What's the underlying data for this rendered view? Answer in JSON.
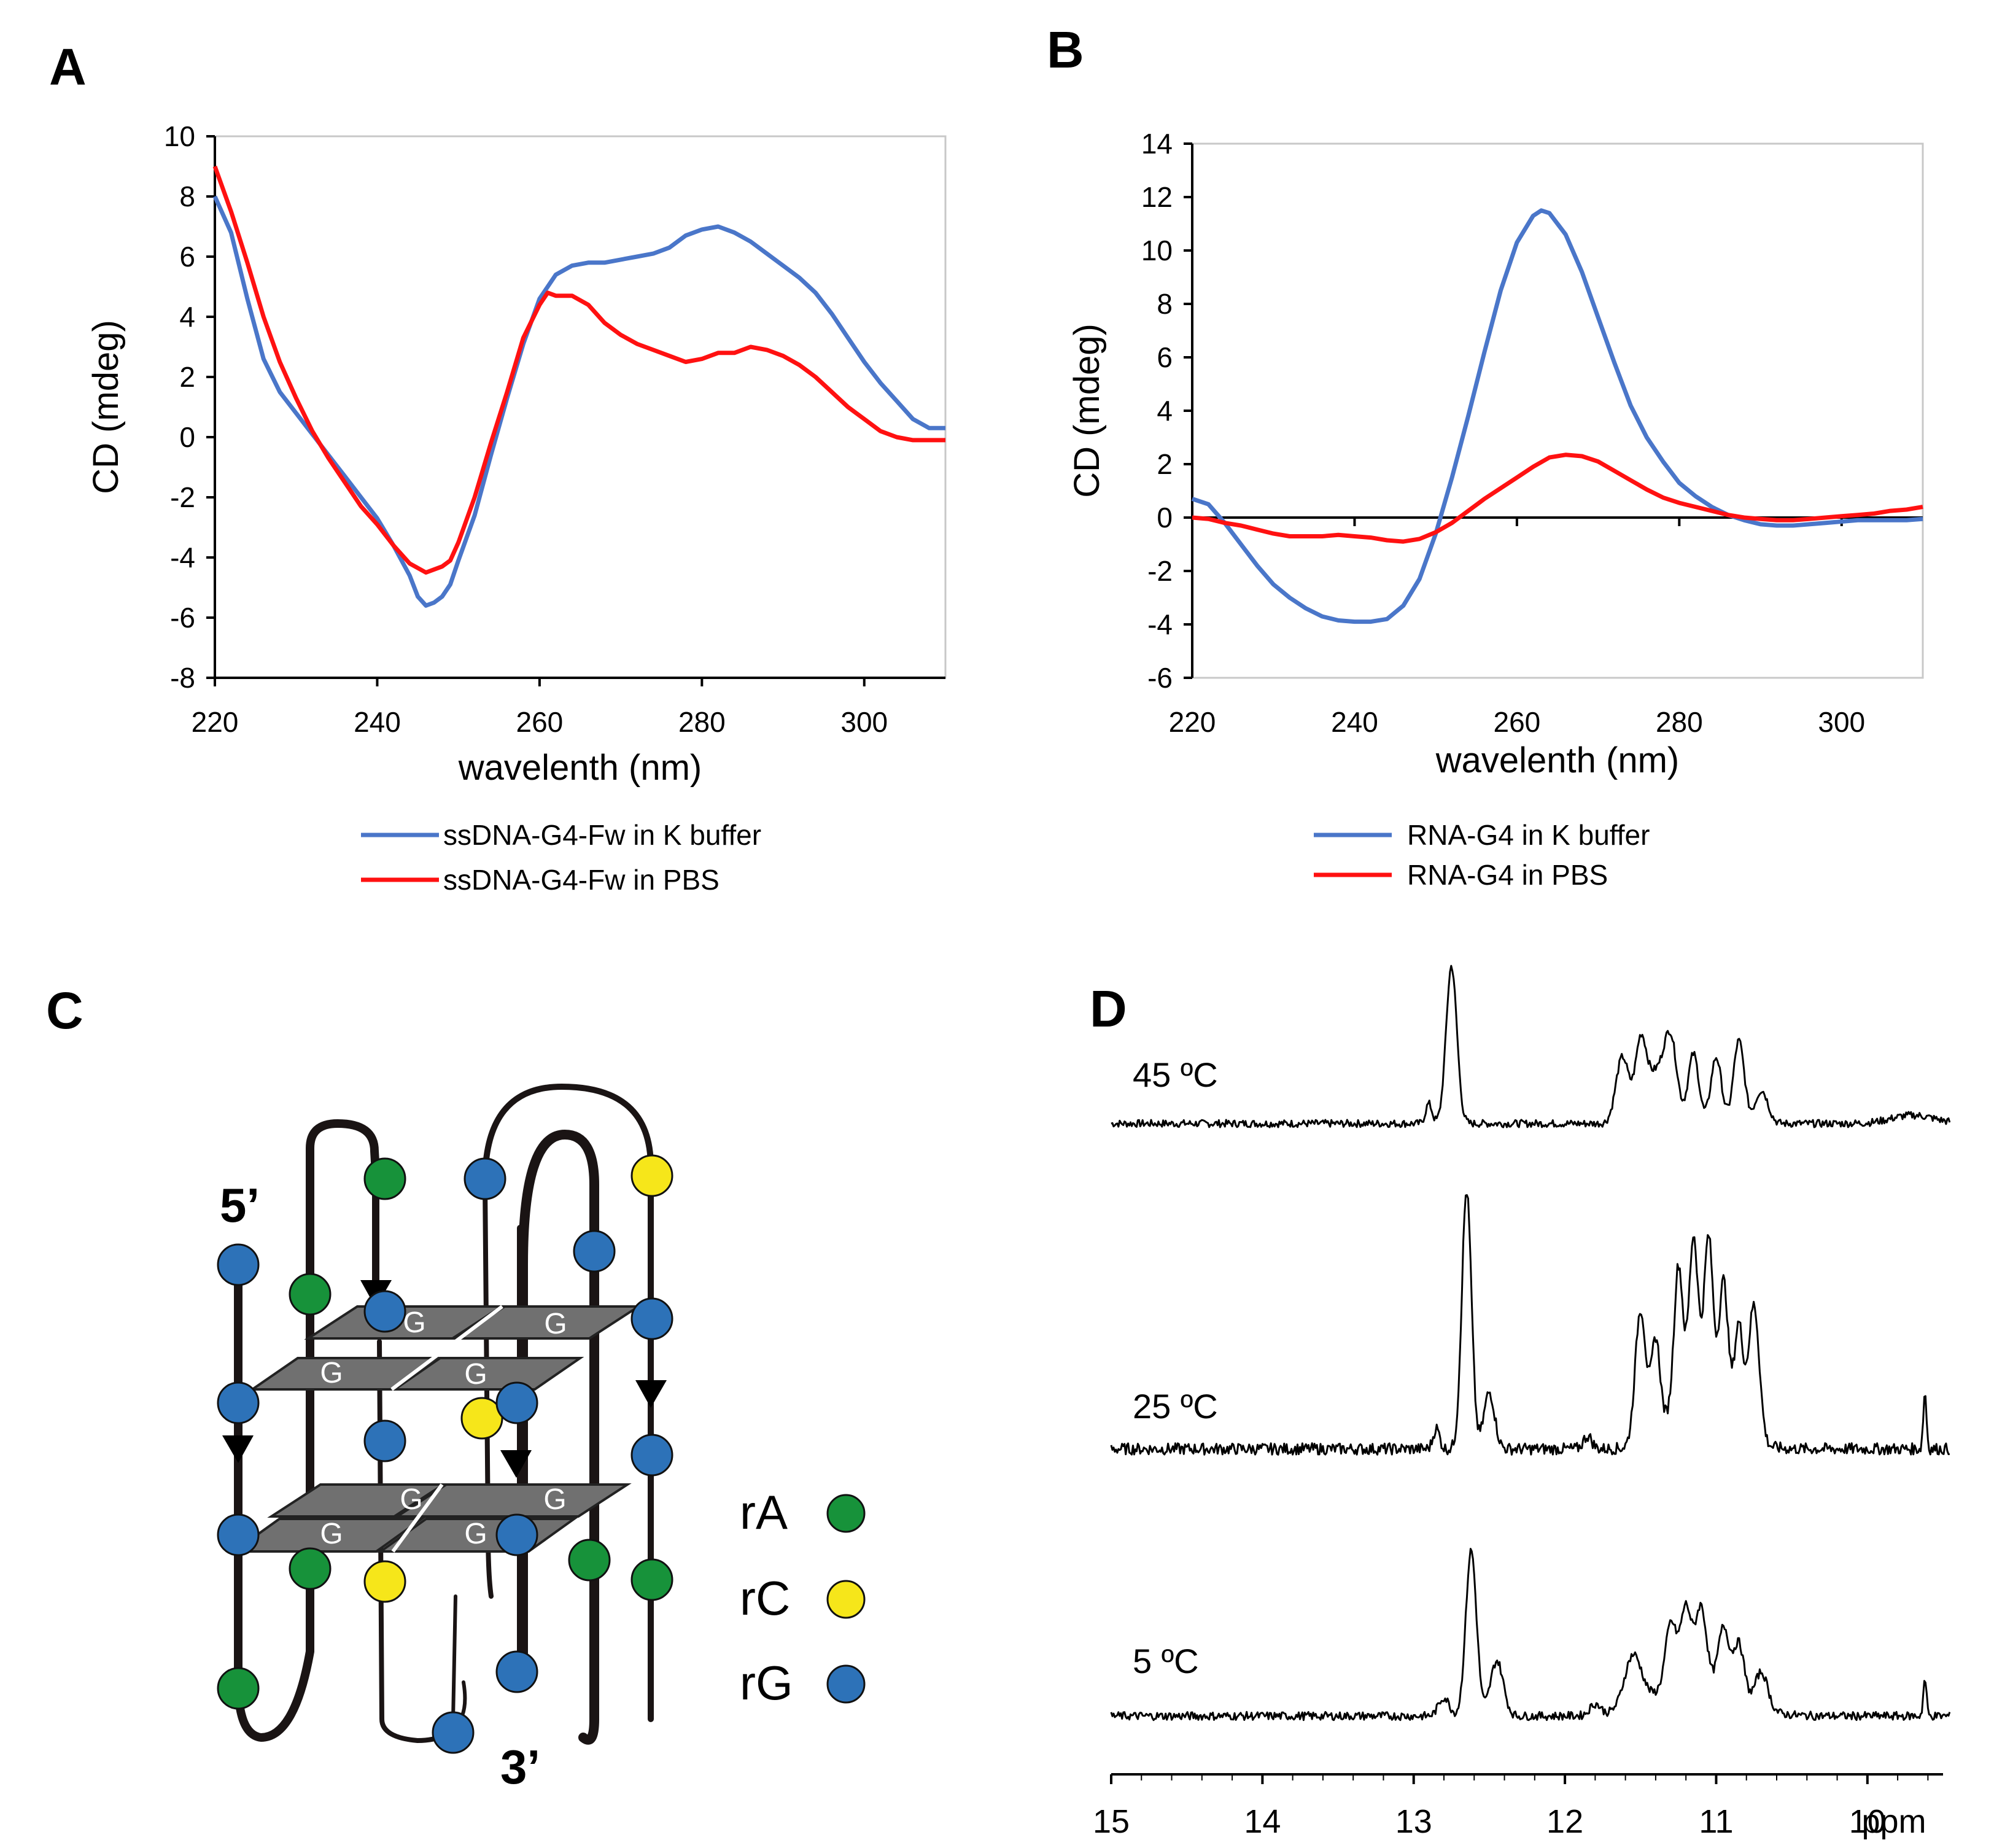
{
  "panels": {
    "A": "A",
    "B": "B",
    "C": "C",
    "D": "D"
  },
  "colors": {
    "k_buffer": "#4a76c9",
    "pbs": "#ff1111",
    "rA": "#17923a",
    "rC": "#f6e61a",
    "rG": "#2d72b8",
    "quartet": "#707070"
  },
  "chart_data": [
    {
      "id": "A",
      "type": "line",
      "xlabel": "wavelenth (nm)",
      "ylabel": "CD (mdeg)",
      "xlim": [
        220,
        310
      ],
      "ylim": [
        -8,
        10
      ],
      "xticks": [
        220,
        240,
        260,
        280,
        300
      ],
      "yticks": [
        -8,
        -6,
        -4,
        -2,
        0,
        2,
        4,
        6,
        8,
        10
      ],
      "series": [
        {
          "name": "ssDNA-G4-Fw in K buffer",
          "color": "#4a76c9",
          "points": [
            [
              220,
              8.0
            ],
            [
              222,
              6.8
            ],
            [
              224,
              4.6
            ],
            [
              226,
              2.6
            ],
            [
              228,
              1.5
            ],
            [
              230,
              0.8
            ],
            [
              232,
              0.1
            ],
            [
              234,
              -0.6
            ],
            [
              236,
              -1.3
            ],
            [
              238,
              -2.0
            ],
            [
              240,
              -2.7
            ],
            [
              242,
              -3.6
            ],
            [
              244,
              -4.6
            ],
            [
              245,
              -5.3
            ],
            [
              246,
              -5.6
            ],
            [
              247,
              -5.5
            ],
            [
              248,
              -5.3
            ],
            [
              249,
              -4.9
            ],
            [
              250,
              -4.1
            ],
            [
              252,
              -2.6
            ],
            [
              254,
              -0.6
            ],
            [
              256,
              1.3
            ],
            [
              258,
              3.1
            ],
            [
              260,
              4.6
            ],
            [
              262,
              5.4
            ],
            [
              264,
              5.7
            ],
            [
              266,
              5.8
            ],
            [
              268,
              5.8
            ],
            [
              270,
              5.9
            ],
            [
              272,
              6.0
            ],
            [
              274,
              6.1
            ],
            [
              276,
              6.3
            ],
            [
              278,
              6.7
            ],
            [
              280,
              6.9
            ],
            [
              282,
              7.0
            ],
            [
              284,
              6.8
            ],
            [
              286,
              6.5
            ],
            [
              288,
              6.1
            ],
            [
              290,
              5.7
            ],
            [
              292,
              5.3
            ],
            [
              294,
              4.8
            ],
            [
              296,
              4.1
            ],
            [
              298,
              3.3
            ],
            [
              300,
              2.5
            ],
            [
              302,
              1.8
            ],
            [
              304,
              1.2
            ],
            [
              306,
              0.6
            ],
            [
              308,
              0.3
            ],
            [
              310,
              0.3
            ]
          ]
        },
        {
          "name": "ssDNA-G4-Fw in PBS",
          "color": "#ff1111",
          "points": [
            [
              220,
              9.0
            ],
            [
              222,
              7.5
            ],
            [
              224,
              5.8
            ],
            [
              226,
              4.0
            ],
            [
              228,
              2.5
            ],
            [
              230,
              1.3
            ],
            [
              232,
              0.2
            ],
            [
              234,
              -0.7
            ],
            [
              236,
              -1.5
            ],
            [
              238,
              -2.3
            ],
            [
              240,
              -2.9
            ],
            [
              242,
              -3.6
            ],
            [
              244,
              -4.2
            ],
            [
              246,
              -4.5
            ],
            [
              248,
              -4.3
            ],
            [
              249,
              -4.1
            ],
            [
              250,
              -3.5
            ],
            [
              252,
              -2.0
            ],
            [
              254,
              -0.2
            ],
            [
              256,
              1.5
            ],
            [
              258,
              3.3
            ],
            [
              260,
              4.4
            ],
            [
              261,
              4.8
            ],
            [
              262,
              4.7
            ],
            [
              264,
              4.7
            ],
            [
              266,
              4.4
            ],
            [
              268,
              3.8
            ],
            [
              270,
              3.4
            ],
            [
              272,
              3.1
            ],
            [
              274,
              2.9
            ],
            [
              276,
              2.7
            ],
            [
              278,
              2.5
            ],
            [
              280,
              2.6
            ],
            [
              282,
              2.8
            ],
            [
              284,
              2.8
            ],
            [
              286,
              3.0
            ],
            [
              288,
              2.9
            ],
            [
              290,
              2.7
            ],
            [
              292,
              2.4
            ],
            [
              294,
              2.0
            ],
            [
              296,
              1.5
            ],
            [
              298,
              1.0
            ],
            [
              300,
              0.6
            ],
            [
              302,
              0.2
            ],
            [
              304,
              0.0
            ],
            [
              306,
              -0.1
            ],
            [
              308,
              -0.1
            ],
            [
              310,
              -0.1
            ]
          ]
        }
      ]
    },
    {
      "id": "B",
      "type": "line",
      "xlabel": "wavelenth (nm)",
      "ylabel": "CD (mdeg)",
      "xlim": [
        220,
        310
      ],
      "ylim": [
        -6,
        14
      ],
      "xticks": [
        220,
        240,
        260,
        280,
        300
      ],
      "yticks": [
        -6,
        -4,
        -2,
        0,
        2,
        4,
        6,
        8,
        10,
        12,
        14
      ],
      "series": [
        {
          "name": "RNA-G4 in K buffer",
          "color": "#4a76c9",
          "points": [
            [
              220,
              0.7
            ],
            [
              222,
              0.5
            ],
            [
              224,
              -0.2
            ],
            [
              226,
              -1.0
            ],
            [
              228,
              -1.8
            ],
            [
              230,
              -2.5
            ],
            [
              232,
              -3.0
            ],
            [
              234,
              -3.4
            ],
            [
              236,
              -3.7
            ],
            [
              238,
              -3.85
            ],
            [
              240,
              -3.9
            ],
            [
              242,
              -3.9
            ],
            [
              244,
              -3.8
            ],
            [
              246,
              -3.3
            ],
            [
              248,
              -2.3
            ],
            [
              250,
              -0.6
            ],
            [
              252,
              1.5
            ],
            [
              254,
              3.8
            ],
            [
              256,
              6.2
            ],
            [
              258,
              8.5
            ],
            [
              260,
              10.3
            ],
            [
              262,
              11.3
            ],
            [
              263,
              11.5
            ],
            [
              264,
              11.4
            ],
            [
              266,
              10.6
            ],
            [
              268,
              9.2
            ],
            [
              270,
              7.5
            ],
            [
              272,
              5.8
            ],
            [
              274,
              4.2
            ],
            [
              276,
              3.0
            ],
            [
              278,
              2.1
            ],
            [
              280,
              1.3
            ],
            [
              282,
              0.8
            ],
            [
              284,
              0.4
            ],
            [
              286,
              0.1
            ],
            [
              288,
              -0.1
            ],
            [
              290,
              -0.25
            ],
            [
              292,
              -0.3
            ],
            [
              294,
              -0.3
            ],
            [
              296,
              -0.25
            ],
            [
              298,
              -0.2
            ],
            [
              300,
              -0.15
            ],
            [
              302,
              -0.1
            ],
            [
              304,
              -0.1
            ],
            [
              306,
              -0.1
            ],
            [
              308,
              -0.1
            ],
            [
              310,
              -0.05
            ]
          ]
        },
        {
          "name": "RNA-G4 in PBS",
          "color": "#ff1111",
          "points": [
            [
              220,
              0.0
            ],
            [
              222,
              -0.05
            ],
            [
              224,
              -0.2
            ],
            [
              226,
              -0.3
            ],
            [
              228,
              -0.45
            ],
            [
              230,
              -0.6
            ],
            [
              232,
              -0.7
            ],
            [
              234,
              -0.7
            ],
            [
              236,
              -0.7
            ],
            [
              238,
              -0.65
            ],
            [
              240,
              -0.7
            ],
            [
              242,
              -0.75
            ],
            [
              244,
              -0.85
            ],
            [
              246,
              -0.9
            ],
            [
              248,
              -0.8
            ],
            [
              250,
              -0.55
            ],
            [
              252,
              -0.2
            ],
            [
              254,
              0.25
            ],
            [
              256,
              0.7
            ],
            [
              258,
              1.1
            ],
            [
              260,
              1.5
            ],
            [
              262,
              1.9
            ],
            [
              264,
              2.25
            ],
            [
              266,
              2.35
            ],
            [
              268,
              2.3
            ],
            [
              270,
              2.1
            ],
            [
              272,
              1.75
            ],
            [
              274,
              1.4
            ],
            [
              276,
              1.05
            ],
            [
              278,
              0.75
            ],
            [
              280,
              0.55
            ],
            [
              282,
              0.4
            ],
            [
              284,
              0.25
            ],
            [
              286,
              0.1
            ],
            [
              288,
              0.0
            ],
            [
              290,
              -0.05
            ],
            [
              292,
              -0.1
            ],
            [
              294,
              -0.1
            ],
            [
              296,
              -0.05
            ],
            [
              298,
              0.0
            ],
            [
              300,
              0.05
            ],
            [
              302,
              0.1
            ],
            [
              304,
              0.15
            ],
            [
              306,
              0.25
            ],
            [
              308,
              0.3
            ],
            [
              310,
              0.4
            ]
          ]
        }
      ]
    },
    {
      "id": "D",
      "type": "line",
      "title": "",
      "xlabel": "ppm",
      "xlim": [
        15,
        9.5
      ],
      "xticks": [
        15,
        14,
        13,
        12,
        11,
        10
      ],
      "spectra": [
        {
          "label": "45 ºC",
          "peaks": [
            [
              12.75,
              0.95,
              0.05
            ],
            [
              12.9,
              0.12,
              0.03
            ],
            [
              11.62,
              0.4,
              0.06
            ],
            [
              11.5,
              0.42,
              0.05
            ],
            [
              11.3,
              0.44,
              0.06
            ],
            [
              11.15,
              0.42,
              0.05
            ],
            [
              11.0,
              0.4,
              0.05
            ],
            [
              10.85,
              0.5,
              0.05
            ],
            [
              10.7,
              0.2,
              0.06
            ],
            [
              11.4,
              0.3,
              0.1
            ],
            [
              9.7,
              0.05,
              0.2
            ]
          ]
        },
        {
          "label": "25 ºC",
          "peaks": [
            [
              12.65,
              1.0,
              0.045
            ],
            [
              12.5,
              0.22,
              0.05
            ],
            [
              12.85,
              0.08,
              0.03
            ],
            [
              11.5,
              0.52,
              0.05
            ],
            [
              11.4,
              0.36,
              0.04
            ],
            [
              11.25,
              0.52,
              0.04
            ],
            [
              11.15,
              0.56,
              0.04
            ],
            [
              11.05,
              0.56,
              0.04
            ],
            [
              10.95,
              0.46,
              0.04
            ],
            [
              10.85,
              0.38,
              0.04
            ],
            [
              10.75,
              0.52,
              0.05
            ],
            [
              11.1,
              0.28,
              0.25
            ],
            [
              11.85,
              0.05,
              0.04
            ],
            [
              9.62,
              0.22,
              0.015
            ]
          ]
        },
        {
          "label": "5 ºC",
          "peaks": [
            [
              12.62,
              0.9,
              0.05
            ],
            [
              12.45,
              0.3,
              0.06
            ],
            [
              12.8,
              0.1,
              0.05
            ],
            [
              11.55,
              0.28,
              0.08
            ],
            [
              11.3,
              0.34,
              0.05
            ],
            [
              11.2,
              0.4,
              0.05
            ],
            [
              11.1,
              0.4,
              0.05
            ],
            [
              10.95,
              0.34,
              0.05
            ],
            [
              10.85,
              0.3,
              0.05
            ],
            [
              10.7,
              0.2,
              0.06
            ],
            [
              11.15,
              0.2,
              0.35
            ],
            [
              11.8,
              0.06,
              0.05
            ],
            [
              9.62,
              0.2,
              0.015
            ]
          ]
        }
      ]
    }
  ],
  "diagram_c": {
    "five_prime": "5’",
    "three_prime": "3’",
    "g_letter": "G",
    "key": [
      {
        "label": "rA",
        "color": "#17923a"
      },
      {
        "label": "rC",
        "color": "#f6e61a"
      },
      {
        "label": "rG",
        "color": "#2d72b8"
      }
    ]
  }
}
